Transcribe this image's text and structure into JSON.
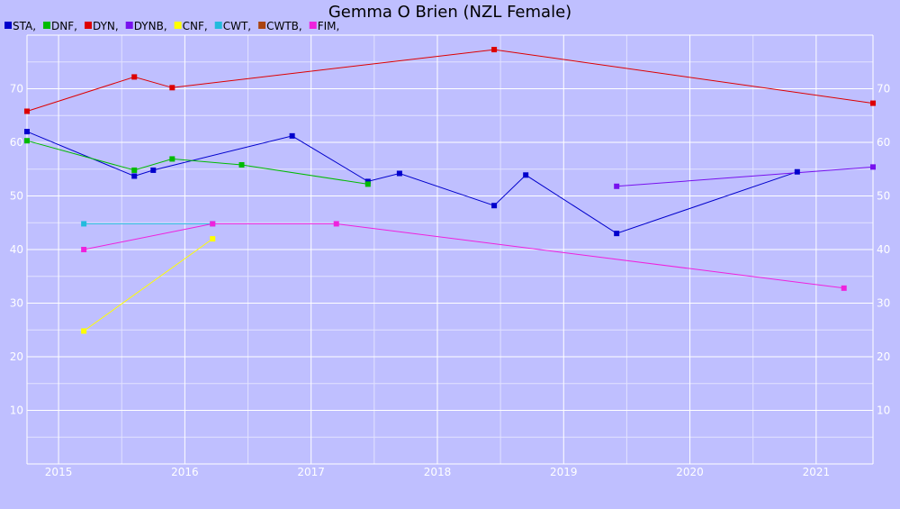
{
  "chart_data": {
    "type": "line",
    "title": "Gemma O Brien (NZL Female)",
    "xlabel": "",
    "ylabel": "",
    "xlim": [
      2014.75,
      2021.45
    ],
    "ylim": [
      0,
      80
    ],
    "x_ticks": [
      2015,
      2016,
      2017,
      2018,
      2019,
      2020,
      2021
    ],
    "y_ticks": [
      10,
      20,
      30,
      40,
      50,
      60,
      70
    ],
    "grid": true,
    "legend_position": "top-left",
    "series": [
      {
        "name": "STA,",
        "color": "#0000cc",
        "points": [
          [
            2014.75,
            62
          ],
          [
            2015.6,
            53.7
          ],
          [
            2015.75,
            54.8
          ],
          [
            2016.85,
            61.2
          ],
          [
            2017.45,
            52.7
          ],
          [
            2017.7,
            54.2
          ],
          [
            2018.45,
            48.2
          ],
          [
            2018.7,
            53.9
          ],
          [
            2019.42,
            43
          ],
          [
            2020.85,
            54.5
          ]
        ]
      },
      {
        "name": "DNF,",
        "color": "#00bb00",
        "points": [
          [
            2014.75,
            60.3
          ],
          [
            2015.6,
            54.8
          ],
          [
            2015.9,
            56.9
          ],
          [
            2016.45,
            55.8
          ],
          [
            2017.45,
            52.2
          ]
        ]
      },
      {
        "name": "DYN,",
        "color": "#dd0000",
        "points": [
          [
            2014.75,
            65.8
          ],
          [
            2015.6,
            72.2
          ],
          [
            2015.9,
            70.2
          ],
          [
            2018.45,
            77.3
          ],
          [
            2021.45,
            67.3
          ]
        ]
      },
      {
        "name": "DYNB,",
        "color": "#7711ee",
        "points": [
          [
            2019.42,
            51.8
          ],
          [
            2021.45,
            55.4
          ]
        ]
      },
      {
        "name": "CNF,",
        "color": "#ffff00",
        "points": [
          [
            2015.2,
            24.8
          ],
          [
            2016.22,
            42
          ]
        ]
      },
      {
        "name": "CWT,",
        "color": "#22bbdd",
        "points": [
          [
            2015.2,
            44.8
          ],
          [
            2016.22,
            44.8
          ]
        ]
      },
      {
        "name": "CWTB,",
        "color": "#aa4411",
        "points": []
      },
      {
        "name": "FIM,",
        "color": "#ee22dd",
        "points": [
          [
            2015.2,
            40
          ],
          [
            2016.22,
            44.8
          ],
          [
            2017.2,
            44.8
          ],
          [
            2021.22,
            32.8
          ]
        ]
      }
    ]
  }
}
